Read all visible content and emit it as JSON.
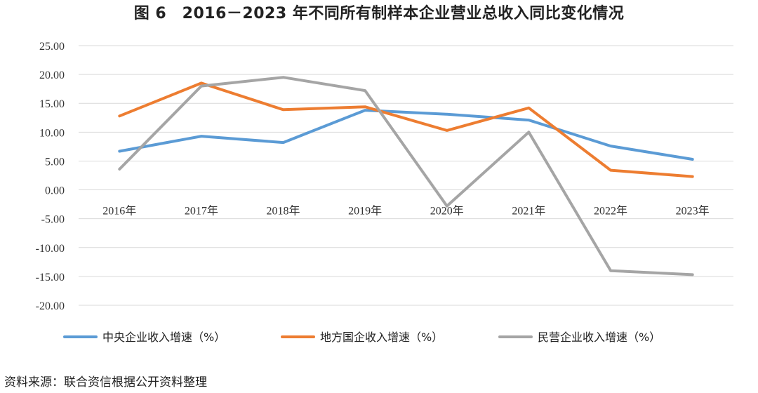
{
  "title": "图 6　2016－2023 年不同所有制样本企业营业总收入同比变化情况",
  "source": "资料来源：联合资信根据公开资料整理",
  "chart_data": {
    "type": "line",
    "categories": [
      "2016年",
      "2017年",
      "2018年",
      "2019年",
      "2020年",
      "2021年",
      "2022年",
      "2023年"
    ],
    "ylim": [
      -20,
      25
    ],
    "yticks": [
      "25.00",
      "20.00",
      "15.00",
      "10.00",
      "5.00",
      "0.00",
      "-5.00",
      "-10.00",
      "-15.00",
      "-20.00"
    ],
    "ytick_values": [
      25,
      20,
      15,
      10,
      5,
      0,
      -5,
      -10,
      -15,
      -20
    ],
    "grid": true,
    "legend_position": "bottom",
    "series": [
      {
        "name": "中央企业收入增速（%）",
        "color": "#5B9BD5",
        "values": [
          6.7,
          9.3,
          8.2,
          13.8,
          13.1,
          12.1,
          7.6,
          5.3
        ]
      },
      {
        "name": "地方国企收入增速（%）",
        "color": "#ED7D31",
        "values": [
          12.8,
          18.5,
          13.9,
          14.4,
          10.3,
          14.2,
          3.4,
          2.3
        ]
      },
      {
        "name": "民营企业收入增速（%）",
        "color": "#A5A5A5",
        "values": [
          3.6,
          18.0,
          19.5,
          17.2,
          -2.8,
          10.0,
          -14.0,
          -14.7
        ]
      }
    ]
  }
}
